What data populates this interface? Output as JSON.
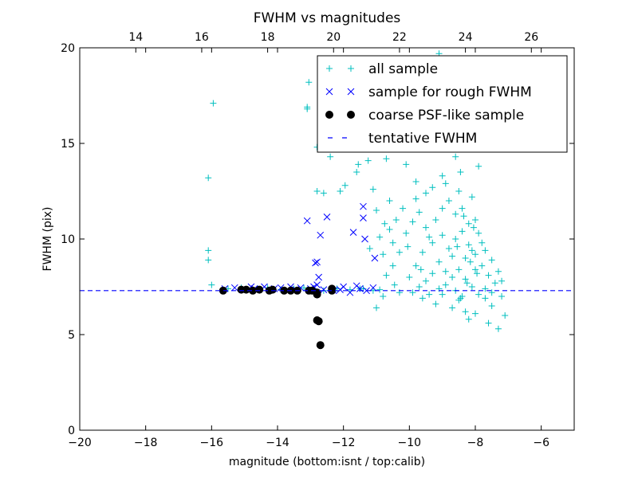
{
  "chart_data": {
    "type": "scatter",
    "title": "FWHM vs magnitudes",
    "xlabel": "magnitude (bottom:isnt / top:calib)",
    "ylabel": "FWHM (pix)",
    "xlim": [
      -20,
      -5
    ],
    "ylim": [
      0,
      20
    ],
    "x_ticks": [
      -20,
      -18,
      -16,
      -14,
      -12,
      -10,
      -8,
      -6
    ],
    "x_tick_labels": [
      "−20",
      "−18",
      "−16",
      "−14",
      "−12",
      "−10",
      "−8",
      "−6"
    ],
    "y_ticks": [
      0,
      5,
      10,
      15,
      20
    ],
    "y_tick_labels": [
      "0",
      "5",
      "10",
      "15",
      "20"
    ],
    "top_axis": {
      "xlim": [
        12.3,
        27.3
      ],
      "ticks": [
        14,
        16,
        18,
        20,
        22,
        24,
        26
      ],
      "tick_labels": [
        "14",
        "16",
        "18",
        "20",
        "22",
        "24",
        "26"
      ]
    },
    "legend_position": "top-right",
    "series": [
      {
        "name": "all sample",
        "marker": "plus",
        "color": "#00bfbf",
        "points": [
          [
            -16.1,
            13.2
          ],
          [
            -16.1,
            9.4
          ],
          [
            -16.1,
            8.9
          ],
          [
            -15.95,
            17.1
          ],
          [
            -16.0,
            7.6
          ],
          [
            -13.05,
            18.2
          ],
          [
            -13.1,
            16.9
          ],
          [
            -13.1,
            16.8
          ],
          [
            -12.8,
            14.8
          ],
          [
            -12.4,
            14.3
          ],
          [
            -12.8,
            12.5
          ],
          [
            -12.6,
            12.4
          ],
          [
            -12.1,
            12.5
          ],
          [
            -11.95,
            12.8
          ],
          [
            -11.6,
            13.5
          ],
          [
            -11.55,
            13.9
          ],
          [
            -11.1,
            12.6
          ],
          [
            -11.25,
            14.1
          ],
          [
            -10.7,
            14.2
          ],
          [
            -10.3,
            16.5
          ],
          [
            -9.6,
            15.2
          ],
          [
            -9.4,
            17.4
          ],
          [
            -9.3,
            16.3
          ],
          [
            -9.1,
            19.7
          ],
          [
            -8.7,
            18.3
          ],
          [
            -8.3,
            17.1
          ],
          [
            -8.05,
            16.0
          ],
          [
            -8.6,
            14.3
          ],
          [
            -7.9,
            13.8
          ],
          [
            -8.45,
            13.5
          ],
          [
            -9.8,
            13.0
          ],
          [
            -10.1,
            13.9
          ],
          [
            -9.0,
            13.3
          ],
          [
            -9.5,
            12.4
          ],
          [
            -10.6,
            12.0
          ],
          [
            -11.0,
            11.5
          ],
          [
            -10.9,
            10.1
          ],
          [
            -10.5,
            9.8
          ],
          [
            -10.8,
            9.2
          ],
          [
            -11.2,
            9.5
          ],
          [
            -11.5,
            7.4
          ],
          [
            -11.1,
            7.3
          ],
          [
            -10.9,
            7.35
          ],
          [
            -11.0,
            6.4
          ],
          [
            -10.3,
            7.2
          ],
          [
            -10.8,
            7.0
          ],
          [
            -9.9,
            7.2
          ],
          [
            -9.6,
            6.9
          ],
          [
            -9.0,
            7.1
          ],
          [
            -8.5,
            6.8
          ],
          [
            -8.2,
            5.8
          ],
          [
            -8.0,
            6.1
          ],
          [
            -7.6,
            5.6
          ],
          [
            -7.3,
            5.3
          ],
          [
            -7.1,
            6.0
          ],
          [
            -7.2,
            7.8
          ],
          [
            -7.5,
            6.5
          ],
          [
            -7.7,
            6.9
          ],
          [
            -8.3,
            6.2
          ],
          [
            -9.2,
            6.6
          ],
          [
            -8.7,
            6.4
          ],
          [
            -15.5,
            7.4
          ],
          [
            -15.1,
            7.45
          ],
          [
            -14.6,
            7.4
          ],
          [
            -14.3,
            7.45
          ],
          [
            -13.9,
            7.35
          ],
          [
            -13.5,
            7.4
          ],
          [
            -13.2,
            7.45
          ],
          [
            -12.9,
            7.4
          ],
          [
            -12.6,
            7.3
          ],
          [
            -12.2,
            7.4
          ],
          [
            -11.8,
            7.35
          ],
          [
            -11.4,
            7.4
          ],
          [
            -10.0,
            8.0
          ],
          [
            -9.8,
            8.6
          ],
          [
            -9.6,
            9.3
          ],
          [
            -9.4,
            10.1
          ],
          [
            -9.2,
            11.0
          ],
          [
            -9.0,
            11.6
          ],
          [
            -8.8,
            12.0
          ],
          [
            -8.6,
            11.3
          ],
          [
            -8.4,
            10.4
          ],
          [
            -8.2,
            9.7
          ],
          [
            -8.0,
            9.2
          ],
          [
            -7.8,
            8.6
          ],
          [
            -7.6,
            8.1
          ],
          [
            -7.4,
            7.7
          ],
          [
            -8.7,
            9.1
          ],
          [
            -8.5,
            8.4
          ],
          [
            -8.3,
            7.9
          ],
          [
            -8.1,
            7.5
          ],
          [
            -7.9,
            7.1
          ],
          [
            -9.1,
            8.8
          ],
          [
            -9.3,
            8.2
          ],
          [
            -9.5,
            7.8
          ],
          [
            -9.7,
            7.5
          ],
          [
            -8.9,
            7.6
          ],
          [
            -8.6,
            7.3
          ],
          [
            -8.4,
            7.0
          ],
          [
            -8.0,
            8.4
          ],
          [
            -7.8,
            9.8
          ],
          [
            -8.2,
            10.8
          ],
          [
            -8.4,
            11.6
          ],
          [
            -8.0,
            11.0
          ],
          [
            -8.6,
            10.0
          ],
          [
            -8.8,
            9.5
          ],
          [
            -9.0,
            10.2
          ],
          [
            -9.3,
            9.8
          ],
          [
            -9.5,
            10.6
          ],
          [
            -9.7,
            11.4
          ],
          [
            -9.9,
            10.9
          ],
          [
            -10.1,
            10.3
          ],
          [
            -10.3,
            9.3
          ],
          [
            -10.5,
            8.6
          ],
          [
            -10.7,
            8.1
          ],
          [
            -10.2,
            11.6
          ],
          [
            -10.4,
            11.0
          ],
          [
            -10.6,
            10.5
          ],
          [
            -9.8,
            12.1
          ],
          [
            -9.3,
            12.7
          ],
          [
            -8.9,
            12.9
          ],
          [
            -8.5,
            12.5
          ],
          [
            -8.1,
            12.2
          ],
          [
            -7.9,
            10.3
          ],
          [
            -7.7,
            9.4
          ],
          [
            -7.5,
            8.9
          ],
          [
            -7.3,
            8.3
          ],
          [
            -8.3,
            9.0
          ],
          [
            -8.1,
            9.4
          ],
          [
            -8.7,
            8.0
          ],
          [
            -8.9,
            8.3
          ],
          [
            -9.1,
            7.4
          ],
          [
            -9.4,
            7.1
          ],
          [
            -7.7,
            7.4
          ],
          [
            -7.5,
            7.2
          ],
          [
            -7.2,
            7.0
          ],
          [
            -8.05,
            10.6
          ],
          [
            -8.15,
            8.8
          ],
          [
            -7.95,
            8.2
          ],
          [
            -8.35,
            11.2
          ],
          [
            -8.55,
            9.6
          ],
          [
            -8.25,
            7.7
          ],
          [
            -8.45,
            6.9
          ],
          [
            -9.65,
            8.4
          ],
          [
            -10.05,
            9.6
          ],
          [
            -10.45,
            7.6
          ],
          [
            -10.75,
            10.8
          ]
        ]
      },
      {
        "name": "sample for rough FWHM",
        "marker": "x",
        "color": "#0000ff",
        "points": [
          [
            -13.1,
            10.95
          ],
          [
            -12.5,
            11.15
          ],
          [
            -12.7,
            10.2
          ],
          [
            -11.4,
            11.7
          ],
          [
            -11.4,
            11.1
          ],
          [
            -11.7,
            10.35
          ],
          [
            -11.35,
            10.0
          ],
          [
            -11.05,
            9.0
          ],
          [
            -12.8,
            8.8
          ],
          [
            -12.85,
            8.75
          ],
          [
            -12.75,
            8.0
          ],
          [
            -12.8,
            7.6
          ],
          [
            -15.6,
            7.4
          ],
          [
            -15.3,
            7.45
          ],
          [
            -15.0,
            7.35
          ],
          [
            -14.7,
            7.4
          ],
          [
            -14.4,
            7.5
          ],
          [
            -14.1,
            7.4
          ],
          [
            -13.9,
            7.45
          ],
          [
            -13.6,
            7.5
          ],
          [
            -13.3,
            7.45
          ],
          [
            -13.0,
            7.4
          ],
          [
            -12.6,
            7.35
          ],
          [
            -12.3,
            7.3
          ],
          [
            -12.0,
            7.5
          ],
          [
            -11.8,
            7.2
          ],
          [
            -11.5,
            7.4
          ],
          [
            -11.3,
            7.3
          ],
          [
            -11.1,
            7.45
          ],
          [
            -12.1,
            7.35
          ],
          [
            -11.6,
            7.55
          ],
          [
            -12.9,
            7.5
          ],
          [
            -14.8,
            7.5
          ],
          [
            -13.45,
            7.35
          ]
        ]
      },
      {
        "name": "coarse PSF-like sample",
        "marker": "circle",
        "color": "#000000",
        "points": [
          [
            -15.65,
            7.3
          ],
          [
            -15.1,
            7.35
          ],
          [
            -14.95,
            7.35
          ],
          [
            -14.75,
            7.3
          ],
          [
            -14.55,
            7.35
          ],
          [
            -14.25,
            7.3
          ],
          [
            -14.15,
            7.35
          ],
          [
            -13.8,
            7.3
          ],
          [
            -13.6,
            7.3
          ],
          [
            -13.4,
            7.3
          ],
          [
            -13.05,
            7.3
          ],
          [
            -12.95,
            7.3
          ],
          [
            -12.8,
            7.2
          ],
          [
            -12.8,
            7.1
          ],
          [
            -12.35,
            7.3
          ],
          [
            -12.35,
            7.4
          ],
          [
            -12.8,
            5.75
          ],
          [
            -12.75,
            5.7
          ],
          [
            -12.7,
            4.45
          ]
        ]
      }
    ],
    "reference_lines": [
      {
        "name": "tentative FWHM",
        "y": 7.3,
        "style": "dashed",
        "color": "#0000ff"
      }
    ]
  }
}
